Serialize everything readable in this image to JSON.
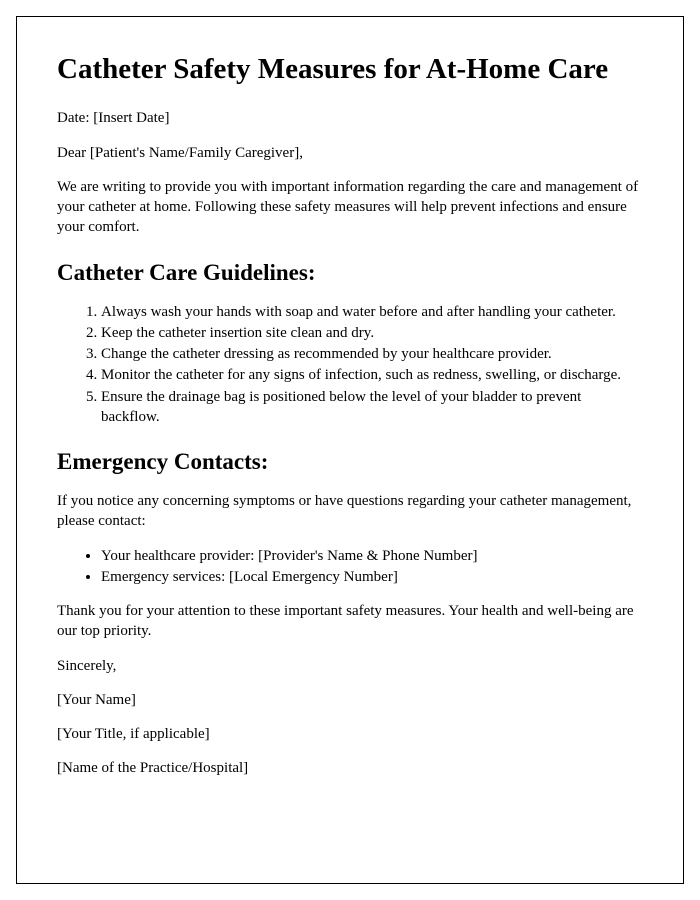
{
  "title": "Catheter Safety Measures for At-Home Care",
  "date_line": "Date: [Insert Date]",
  "greeting": "Dear [Patient's Name/Family Caregiver],",
  "intro": "We are writing to provide you with important information regarding the care and management of your catheter at home. Following these safety measures will help prevent infections and ensure your comfort.",
  "guidelines_heading": "Catheter Care Guidelines:",
  "guidelines": [
    "Always wash your hands with soap and water before and after handling your catheter.",
    "Keep the catheter insertion site clean and dry.",
    "Change the catheter dressing as recommended by your healthcare provider.",
    "Monitor the catheter for any signs of infection, such as redness, swelling, or discharge.",
    "Ensure the drainage bag is positioned below the level of your bladder to prevent backflow."
  ],
  "emergency_heading": "Emergency Contacts:",
  "emergency_intro": "If you notice any concerning symptoms or have questions regarding your catheter management, please contact:",
  "contacts": [
    "Your healthcare provider: [Provider's Name & Phone Number]",
    "Emergency services: [Local Emergency Number]"
  ],
  "thanks": "Thank you for your attention to these important safety measures. Your health and well-being are our top priority.",
  "signoff": "Sincerely,",
  "signature_name": "[Your Name]",
  "signature_title": "[Your Title, if applicable]",
  "signature_org": "[Name of the Practice/Hospital]"
}
